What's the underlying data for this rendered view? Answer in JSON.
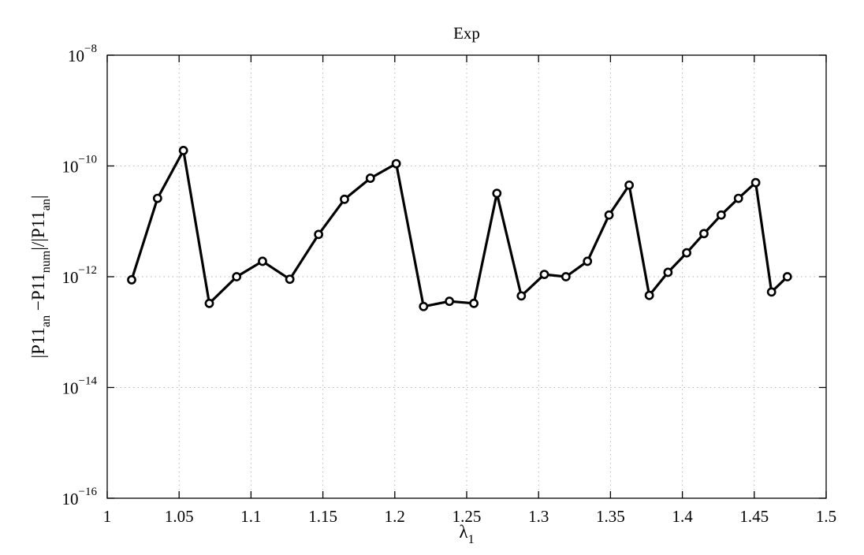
{
  "chart_data": {
    "type": "line",
    "title": "Exp",
    "xlabel": "λ_1",
    "ylabel": "|P11_an −P11_num|/|P11_an|",
    "xlim": [
      1,
      1.5
    ],
    "ylim": [
      1e-16,
      1e-08
    ],
    "yscale": "log",
    "grid": true,
    "x_ticks": [
      "1",
      "1.05",
      "1.1",
      "1.15",
      "1.2",
      "1.25",
      "1.3",
      "1.35",
      "1.4",
      "1.45",
      "1.5"
    ],
    "y_ticks": [
      "-16",
      "-14",
      "-12",
      "-10",
      "-8"
    ],
    "y_tick_base": "10",
    "series": [
      {
        "marker": "circle",
        "color": "#000000",
        "x": [
          1.017,
          1.035,
          1.053,
          1.071,
          1.09,
          1.108,
          1.127,
          1.147,
          1.165,
          1.183,
          1.201,
          1.22,
          1.238,
          1.255,
          1.271,
          1.288,
          1.304,
          1.319,
          1.334,
          1.349,
          1.363,
          1.377,
          1.39,
          1.403,
          1.415,
          1.427,
          1.439,
          1.451,
          1.462,
          1.473
        ],
        "values": [
          8.8e-13,
          2.6e-11,
          1.9e-10,
          3.3e-13,
          1e-12,
          1.9e-12,
          9e-13,
          5.8e-12,
          2.5e-11,
          6e-11,
          1.1e-10,
          2.9e-13,
          3.6e-13,
          3.3e-13,
          3.2e-11,
          4.5e-13,
          1.1e-12,
          1e-12,
          1.9e-12,
          1.3e-11,
          4.5e-11,
          4.6e-13,
          1.2e-12,
          2.7e-12,
          6e-12,
          1.3e-11,
          2.6e-11,
          5e-11,
          5.3e-13,
          1e-12
        ]
      }
    ]
  }
}
